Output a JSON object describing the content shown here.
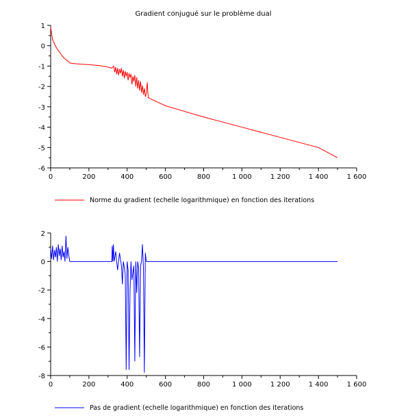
{
  "figure": {
    "title": "Gradient conjugué sur le problème dual"
  },
  "chart_data": [
    {
      "type": "line",
      "title": "Gradient conjugué sur le problème dual",
      "xlim": [
        0,
        1600
      ],
      "ylim": [
        -6,
        1
      ],
      "x_ticks": [
        0,
        200,
        400,
        600,
        800,
        1000,
        1200,
        1400,
        1600
      ],
      "x_tick_labels": [
        "0",
        "200",
        "400",
        "600",
        "800",
        "1 000",
        "1 200",
        "1 400",
        "1 600"
      ],
      "y_ticks": [
        1,
        0,
        -1,
        -2,
        -3,
        -4,
        -5,
        -6
      ],
      "y_tick_labels": [
        "1",
        "0",
        "-1",
        "-2",
        "-3",
        "-4",
        "-5",
        "-6"
      ],
      "legend": {
        "position": "bottom",
        "label": "Norme du gradient (echelle logarithmique) en fonction des iterations"
      },
      "series": [
        {
          "name": "Norme du gradient (echelle logarithmique) en fonction des iterations",
          "color": "#ff0000",
          "points": [
            [
              0,
              0.9
            ],
            [
              5,
              0.6
            ],
            [
              10,
              0.3
            ],
            [
              20,
              0.1
            ],
            [
              30,
              -0.1
            ],
            [
              45,
              -0.3
            ],
            [
              60,
              -0.5
            ],
            [
              75,
              -0.65
            ],
            [
              90,
              -0.75
            ],
            [
              100,
              -0.85
            ],
            [
              150,
              -0.9
            ],
            [
              200,
              -0.93
            ],
            [
              250,
              -0.97
            ],
            [
              300,
              -1.05
            ],
            [
              320,
              -1.1
            ],
            [
              330,
              -1.0
            ],
            [
              335,
              -1.3
            ],
            [
              340,
              -1.05
            ],
            [
              345,
              -1.4
            ],
            [
              350,
              -1.1
            ],
            [
              355,
              -1.45
            ],
            [
              360,
              -1.15
            ],
            [
              365,
              -1.35
            ],
            [
              370,
              -1.1
            ],
            [
              375,
              -1.5
            ],
            [
              380,
              -1.2
            ],
            [
              385,
              -1.6
            ],
            [
              390,
              -1.25
            ],
            [
              395,
              -1.5
            ],
            [
              400,
              -1.3
            ],
            [
              405,
              -1.7
            ],
            [
              410,
              -1.35
            ],
            [
              415,
              -1.55
            ],
            [
              420,
              -1.4
            ],
            [
              425,
              -1.9
            ],
            [
              430,
              -1.5
            ],
            [
              435,
              -1.75
            ],
            [
              440,
              -1.45
            ],
            [
              445,
              -2.0
            ],
            [
              450,
              -1.55
            ],
            [
              455,
              -2.1
            ],
            [
              460,
              -1.7
            ],
            [
              465,
              -2.2
            ],
            [
              470,
              -1.75
            ],
            [
              475,
              -2.3
            ],
            [
              480,
              -1.95
            ],
            [
              485,
              -2.4
            ],
            [
              490,
              -2.1
            ],
            [
              495,
              -2.5
            ],
            [
              500,
              -2.35
            ],
            [
              505,
              -1.8
            ],
            [
              510,
              -2.55
            ],
            [
              520,
              -2.6
            ],
            [
              600,
              -2.95
            ],
            [
              800,
              -3.5
            ],
            [
              1000,
              -4.0
            ],
            [
              1200,
              -4.5
            ],
            [
              1400,
              -5.0
            ],
            [
              1500,
              -5.5
            ]
          ]
        }
      ]
    },
    {
      "type": "line",
      "title": "",
      "xlim": [
        0,
        1600
      ],
      "ylim": [
        -8,
        2
      ],
      "x_ticks": [
        0,
        200,
        400,
        600,
        800,
        1000,
        1200,
        1400,
        1600
      ],
      "x_tick_labels": [
        "0",
        "200",
        "400",
        "600",
        "800",
        "1 000",
        "1 200",
        "1 400",
        "1 600"
      ],
      "y_ticks": [
        2,
        0,
        -2,
        -4,
        -6,
        -8
      ],
      "y_tick_labels": [
        "2",
        "0",
        "-2",
        "-4",
        "-6",
        "-8"
      ],
      "legend": {
        "position": "bottom",
        "label": "Pas de gradient (echelle logarithmique) en fonction des iterations"
      },
      "series": [
        {
          "name": "Pas de gradient (echelle logarithmique) en fonction des iterations",
          "color": "#0000ff",
          "points": [
            [
              0,
              0.9
            ],
            [
              5,
              0.2
            ],
            [
              10,
              1.1
            ],
            [
              15,
              0.1
            ],
            [
              20,
              0.8
            ],
            [
              25,
              0.3
            ],
            [
              30,
              1.0
            ],
            [
              35,
              0.0
            ],
            [
              40,
              1.2
            ],
            [
              45,
              0.4
            ],
            [
              50,
              0.9
            ],
            [
              55,
              0.1
            ],
            [
              60,
              1.1
            ],
            [
              65,
              0.3
            ],
            [
              70,
              0.7
            ],
            [
              75,
              0.0
            ],
            [
              80,
              1.8
            ],
            [
              85,
              0.2
            ],
            [
              90,
              1.0
            ],
            [
              95,
              0.4
            ],
            [
              100,
              0.0
            ],
            [
              320,
              0.0
            ],
            [
              322,
              1.1
            ],
            [
              325,
              0.0
            ],
            [
              328,
              1.2
            ],
            [
              332,
              0.0
            ],
            [
              340,
              0.7
            ],
            [
              345,
              0.0
            ],
            [
              350,
              -0.6
            ],
            [
              355,
              0.0
            ],
            [
              360,
              0.6
            ],
            [
              370,
              -0.3
            ],
            [
              375,
              -1.6
            ],
            [
              380,
              0.0
            ],
            [
              385,
              -0.4
            ],
            [
              390,
              -0.9
            ],
            [
              395,
              -7.6
            ],
            [
              400,
              0.0
            ],
            [
              405,
              -0.6
            ],
            [
              410,
              -7.6
            ],
            [
              415,
              -2.0
            ],
            [
              420,
              0.0
            ],
            [
              425,
              -1.3
            ],
            [
              430,
              -0.8
            ],
            [
              435,
              -0.3
            ],
            [
              440,
              -7.0
            ],
            [
              445,
              0.0
            ],
            [
              450,
              -2.2
            ],
            [
              455,
              0.0
            ],
            [
              460,
              -0.5
            ],
            [
              465,
              -6.7
            ],
            [
              470,
              -0.3
            ],
            [
              475,
              0.0
            ],
            [
              480,
              1.2
            ],
            [
              485,
              -0.4
            ],
            [
              490,
              -7.8
            ],
            [
              495,
              0.6
            ],
            [
              500,
              0.0
            ],
            [
              1500,
              0.0
            ]
          ]
        }
      ]
    }
  ]
}
